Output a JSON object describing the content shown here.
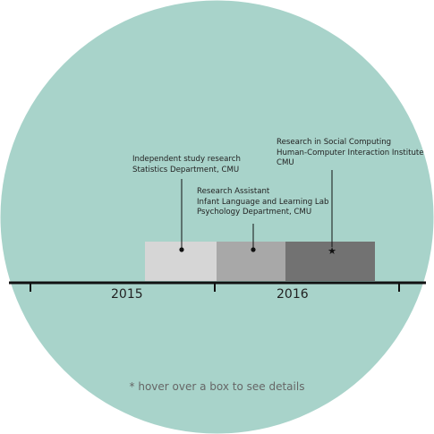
{
  "colors": {
    "circle": "#a8d3ca",
    "axis": "#111111",
    "box_light": "#d6d6d6",
    "box_mid": "#a8a8a8",
    "box_dark": "#727272"
  },
  "timeline": {
    "years": [
      "2015",
      "2016"
    ],
    "entries": [
      {
        "lines": [
          "Independent study research",
          "Statistics Department, CMU"
        ],
        "marker": "dot"
      },
      {
        "lines": [
          "Research Assistant",
          "Infant Language and Learning Lab",
          "Psychology Department, CMU"
        ],
        "marker": "dot"
      },
      {
        "lines": [
          "Research in Social Computing",
          "Human-Computer Interaction Institute",
          "CMU"
        ],
        "marker": "star"
      }
    ]
  },
  "hint": "* hover over a box to see details"
}
